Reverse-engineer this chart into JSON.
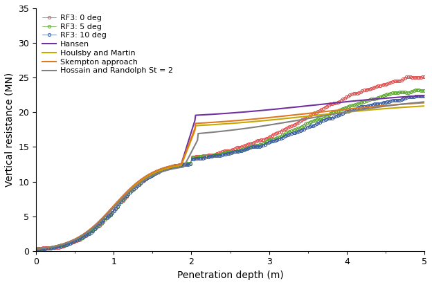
{
  "title": "",
  "xlabel": "Penetration depth (m)",
  "ylabel": "Vertical resistance (MN)",
  "xlim": [
    0,
    5
  ],
  "ylim": [
    0,
    35
  ],
  "xticks": [
    0,
    1,
    2,
    3,
    4,
    5
  ],
  "yticks": [
    0,
    5,
    10,
    15,
    20,
    25,
    30,
    35
  ],
  "series": {
    "RF3_0deg": {
      "label": "RF3: 0 deg",
      "color": "#e05050",
      "marker": "o",
      "markersize": 3.0,
      "linewidth": 0.5,
      "linestyle": "-"
    },
    "RF3_5deg": {
      "label": "RF3: 5 deg",
      "color": "#5da832",
      "marker": "o",
      "markersize": 3.0,
      "linewidth": 0.5,
      "linestyle": "-"
    },
    "RF3_10deg": {
      "label": "RF3: 10 deg",
      "color": "#3a5da0",
      "marker": "o",
      "markersize": 3.0,
      "linewidth": 0.5,
      "linestyle": "-"
    },
    "Hansen": {
      "label": "Hansen",
      "color": "#7030a0",
      "marker": "",
      "markersize": 0,
      "linewidth": 1.5,
      "linestyle": "-"
    },
    "Houlsby": {
      "label": "Houlsby and Martin",
      "color": "#c8a800",
      "marker": "",
      "markersize": 0,
      "linewidth": 1.5,
      "linestyle": "-"
    },
    "Skempton": {
      "label": "Skempton approach",
      "color": "#e07820",
      "marker": "",
      "markersize": 0,
      "linewidth": 1.5,
      "linestyle": "-"
    },
    "Hossain": {
      "label": "Hossain and Randolph St = 2",
      "color": "#808080",
      "marker": "",
      "markersize": 0,
      "linewidth": 1.5,
      "linestyle": "-"
    }
  },
  "background_color": "#ffffff",
  "legend_fontsize": 8.0,
  "axis_fontsize": 10,
  "tick_fontsize": 9
}
